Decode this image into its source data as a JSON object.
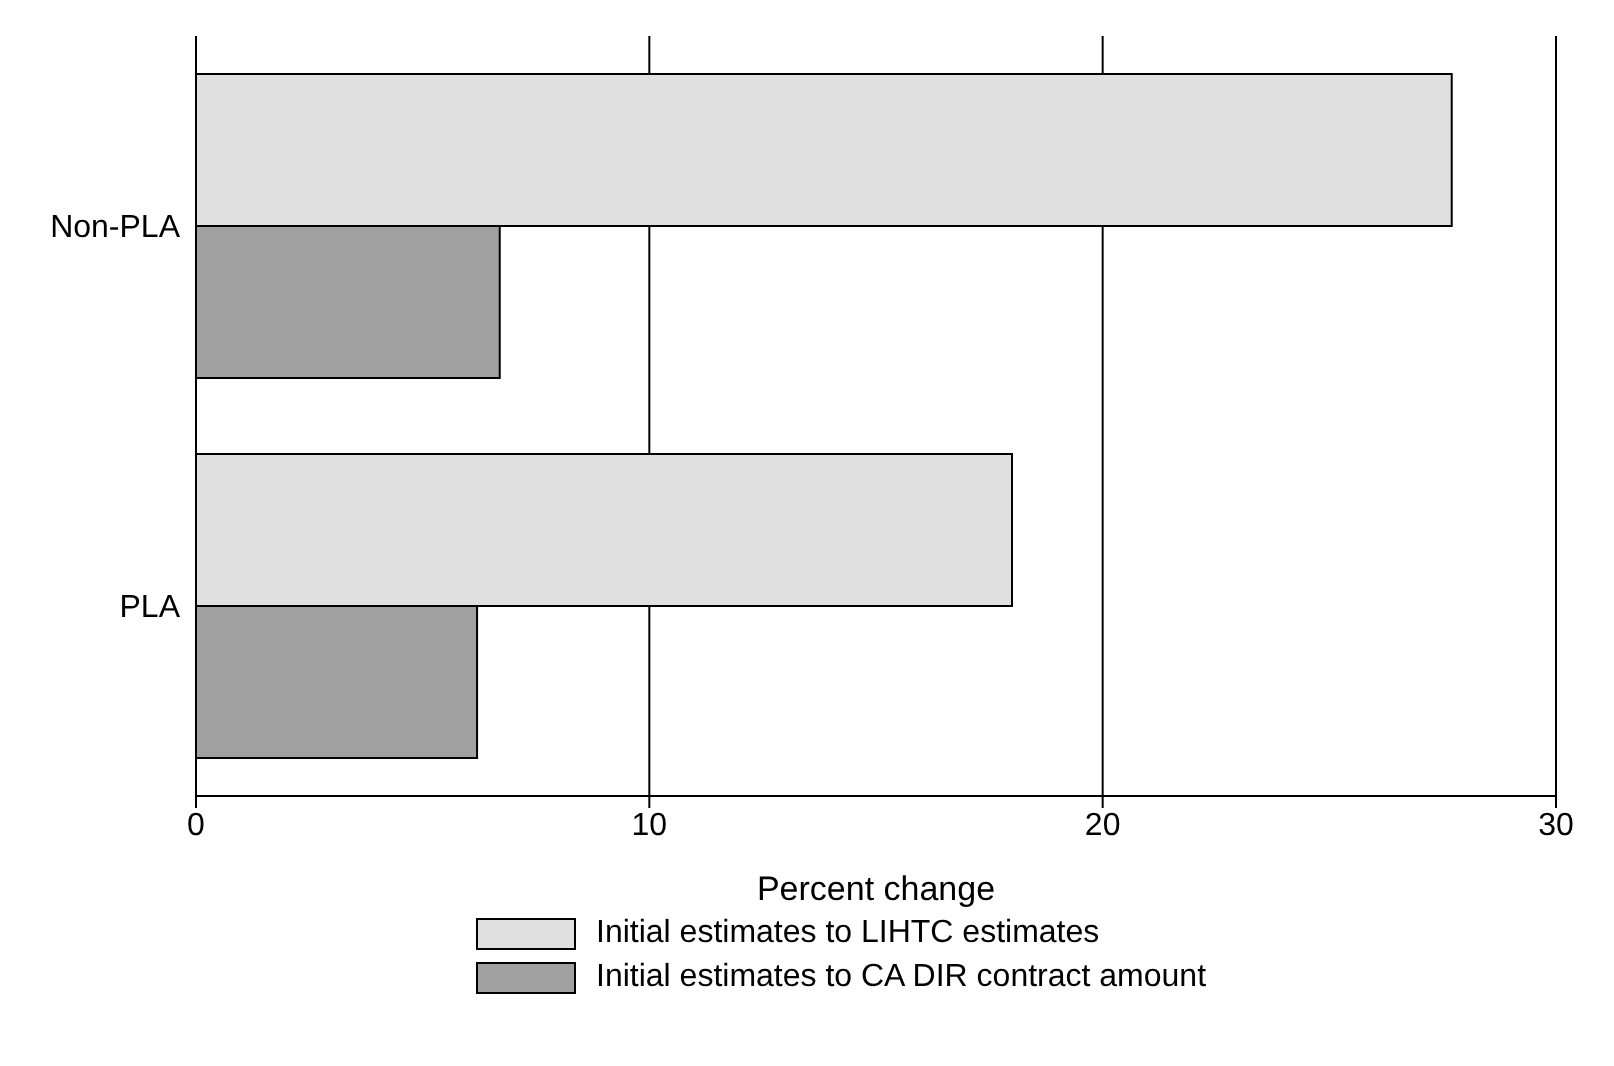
{
  "chart_data": {
    "type": "bar",
    "orientation": "horizontal",
    "categories": [
      "Non-PLA",
      "PLA"
    ],
    "series": [
      {
        "name": "Initial estimates to LIHTC estimates",
        "color": "#e0e0e0",
        "values": [
          27.7,
          18.0
        ]
      },
      {
        "name": "Initial estimates to CA DIR contract amount",
        "color": "#a0a0a0",
        "values": [
          6.7,
          6.2
        ]
      }
    ],
    "xlabel": "Percent change",
    "xlim": [
      0,
      30
    ],
    "xticks": [
      0,
      10,
      20,
      30
    ],
    "grid": "x",
    "legend": "bottom"
  }
}
